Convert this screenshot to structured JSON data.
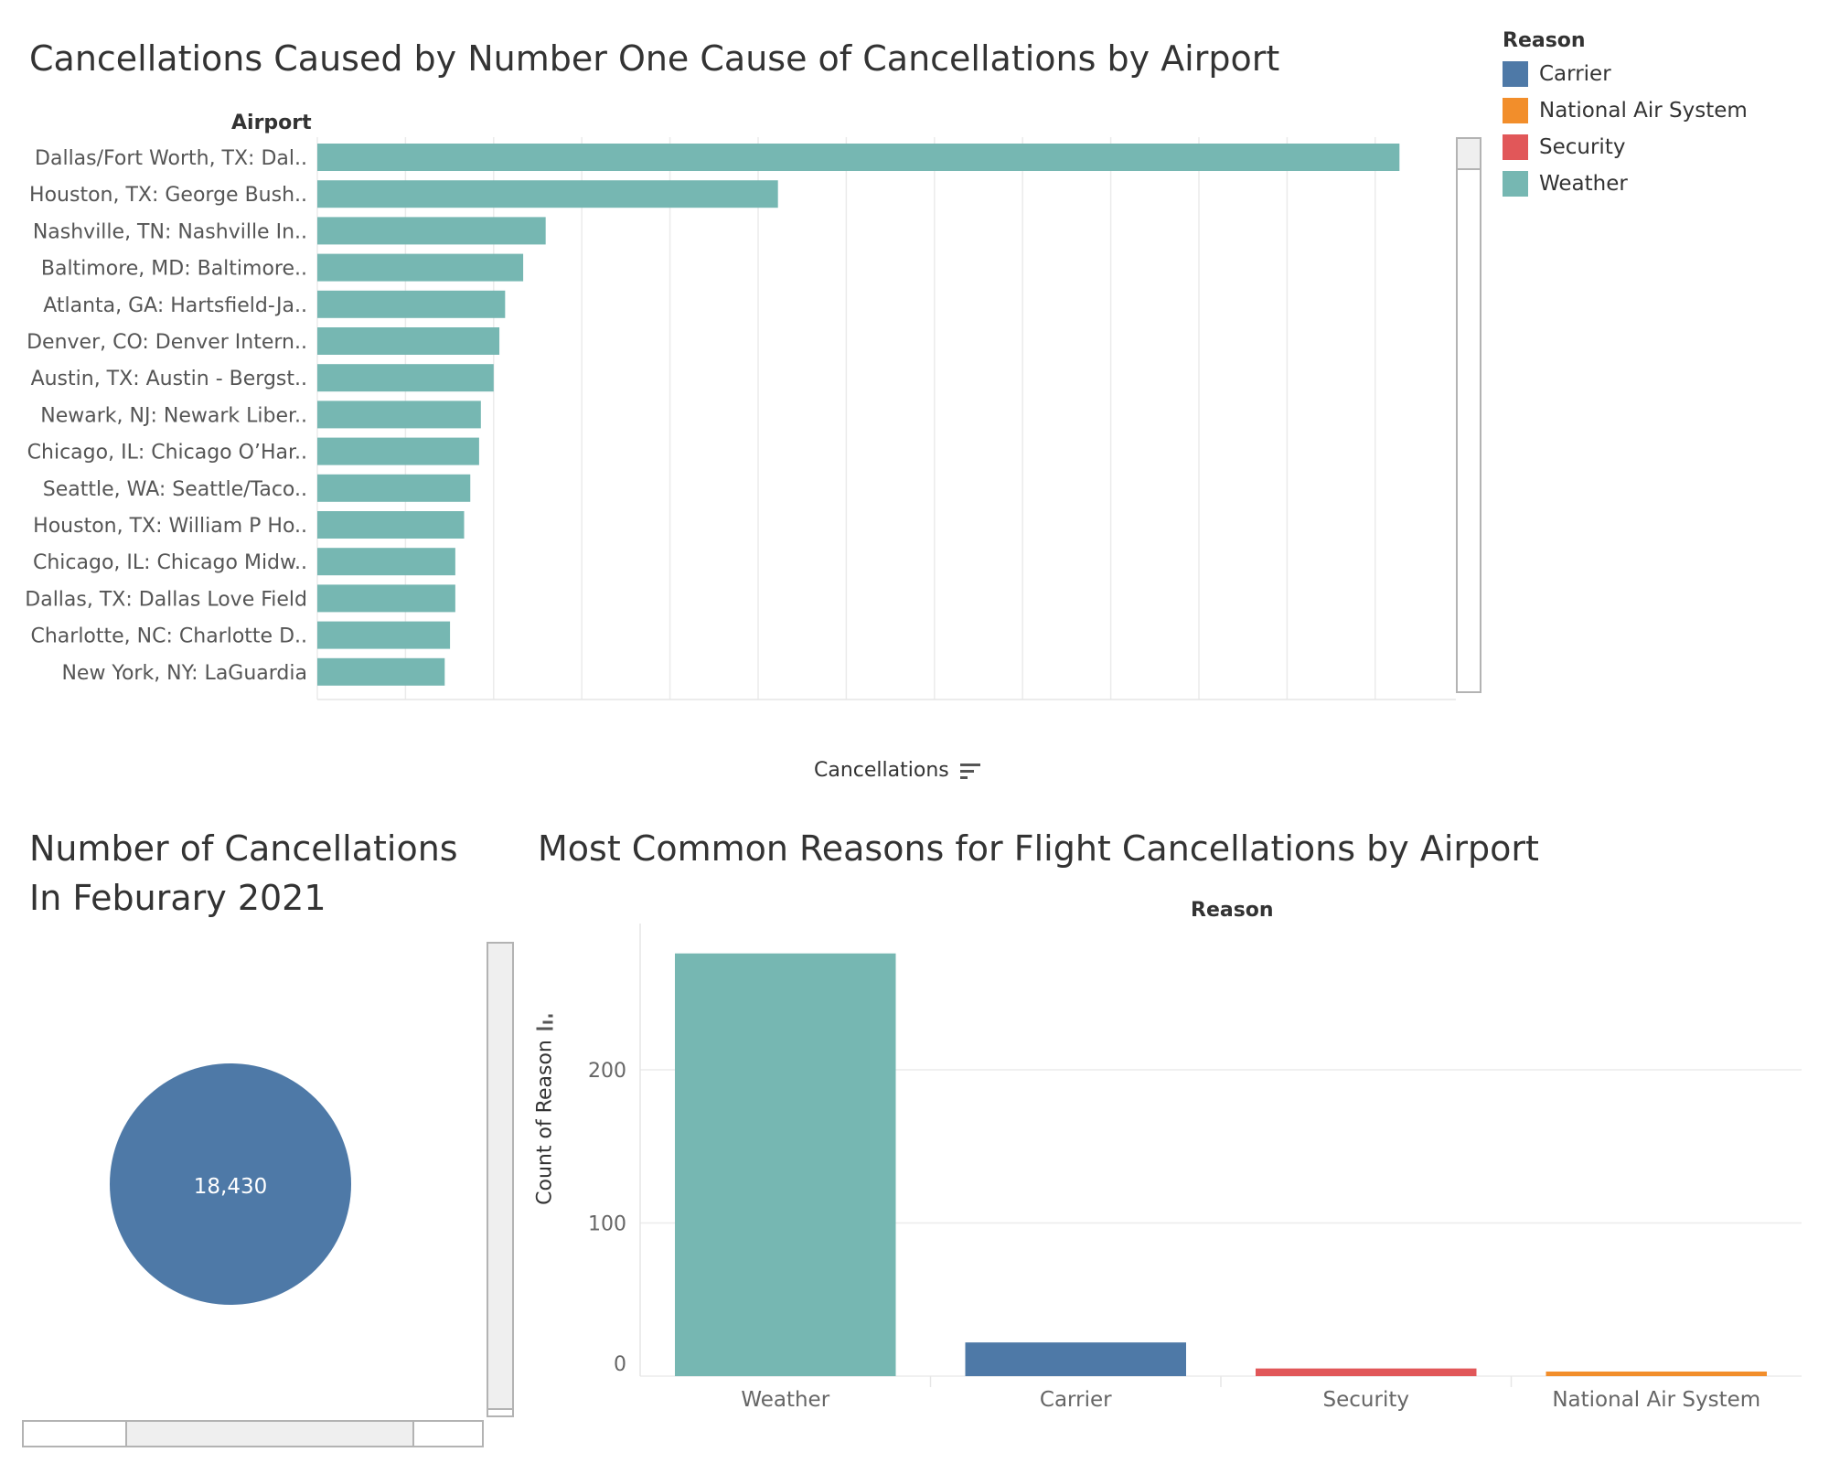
{
  "legend": {
    "title": "Reason",
    "items": [
      {
        "label": "Carrier",
        "color": "#4E79A7"
      },
      {
        "label": "National Air System",
        "color": "#F28E2B"
      },
      {
        "label": "Security",
        "color": "#E15759"
      },
      {
        "label": "Weather",
        "color": "#76B7B2"
      }
    ]
  },
  "top_chart": {
    "title": "Cancellations Caused by Number One Cause of Cancellations by Airport",
    "row_header": "Airport",
    "x_axis_title": "Cancellations",
    "x_ticks": [
      "0",
      "200",
      "400",
      "600",
      "800",
      "1000",
      "1200",
      "1400",
      "1600",
      "1800",
      "2000",
      "2200",
      "2400"
    ]
  },
  "kpi": {
    "title_line1": "Number of Cancellations",
    "title_line2": "In Feburary 2021",
    "value": "18,430",
    "color": "#4E79A7"
  },
  "bottom_chart": {
    "title": "Most Common Reasons for Flight Cancellations by Airport",
    "column_header": "Reason",
    "y_axis_title": "Count of Reason",
    "y_ticks": [
      "0",
      "100",
      "200"
    ]
  },
  "chart_data": [
    {
      "type": "bar",
      "orientation": "horizontal",
      "title": "Cancellations Caused by Number One Cause of Cancellations by Airport",
      "xlabel": "Cancellations",
      "ylabel": "Airport",
      "xlim": [
        0,
        2500
      ],
      "categories": [
        "Dallas/Fort Worth, TX: Dal..",
        "Houston, TX: George Bush..",
        "Nashville, TN: Nashville In..",
        "Baltimore, MD: Baltimore..",
        "Atlanta, GA: Hartsfield-Ja..",
        "Denver, CO: Denver Intern..",
        "Austin, TX: Austin - Bergst..",
        "Newark, NJ: Newark Liber..",
        "Chicago, IL: Chicago O’Har..",
        "Seattle, WA: Seattle/Taco..",
        "Houston, TX: William P Ho..",
        "Chicago, IL: Chicago Midw..",
        "Dallas, TX: Dallas Love Field",
        "Charlotte, NC: Charlotte D..",
        "New York, NY: LaGuardia"
      ],
      "values": [
        2455,
        1045,
        518,
        467,
        426,
        413,
        400,
        371,
        367,
        347,
        333,
        313,
        313,
        301,
        289
      ],
      "color": "#76B7B2",
      "grid": "vertical"
    },
    {
      "type": "bar",
      "title": "Most Common Reasons for Flight Cancellations by Airport",
      "xlabel": "Reason",
      "ylabel": "Count of Reason",
      "ylim": [
        0,
        280
      ],
      "categories": [
        "Weather",
        "Carrier",
        "Security",
        "National Air System"
      ],
      "values": [
        276,
        22,
        5,
        3
      ],
      "colors": [
        "#76B7B2",
        "#4E79A7",
        "#E15759",
        "#F28E2B"
      ],
      "grid": "horizontal"
    }
  ]
}
